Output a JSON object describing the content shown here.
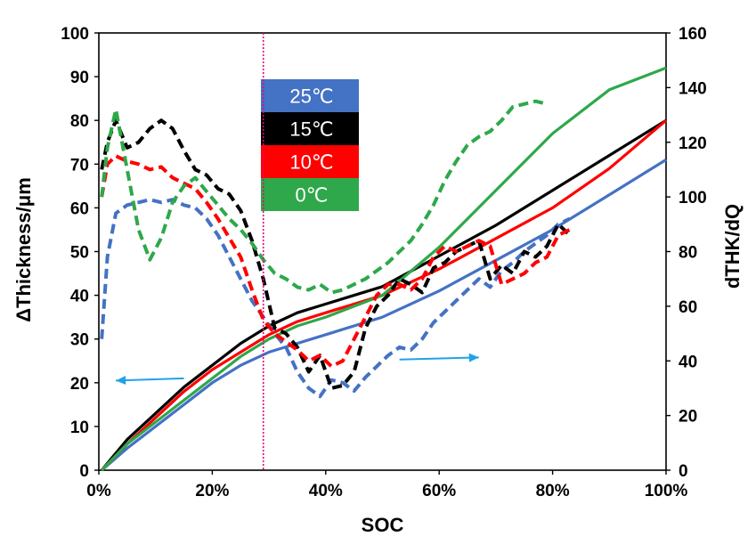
{
  "chart_data": {
    "type": "line",
    "xlabel": "SOC",
    "ylabel": "ΔThickness/μm",
    "y2label": "dTHK/dQ",
    "xlim": [
      0,
      100
    ],
    "ylim": [
      0,
      100
    ],
    "y2lim": [
      0,
      160
    ],
    "x_ticks": [
      0,
      20,
      40,
      60,
      80,
      100
    ],
    "x_tick_labels": [
      "0%",
      "20%",
      "40%",
      "60%",
      "80%",
      "100%"
    ],
    "y_ticks": [
      0,
      10,
      20,
      30,
      40,
      50,
      60,
      70,
      80,
      90,
      100
    ],
    "y_tick_labels": [
      "0",
      "10",
      "20",
      "30",
      "40",
      "50",
      "60",
      "70",
      "80",
      "90",
      "100"
    ],
    "y2_ticks": [
      0,
      20,
      40,
      60,
      80,
      100,
      120,
      140,
      160
    ],
    "y2_tick_labels": [
      "0",
      "20",
      "40",
      "60",
      "80",
      "100",
      "120",
      "140",
      "160"
    ],
    "marker_line_x": 29,
    "arrows": [
      {
        "from": [
          15,
          21
        ],
        "to": [
          3,
          20.5
        ],
        "direction": "left-axis"
      },
      {
        "from": [
          53,
          25.3
        ],
        "to": [
          67,
          25.8
        ],
        "direction": "right-axis"
      }
    ],
    "legend": [
      {
        "label": "25℃",
        "color": "#4472C4",
        "text_color": "#ffffff"
      },
      {
        "label": "15℃",
        "color": "#000000",
        "text_color": "#ffffff"
      },
      {
        "label": "10℃",
        "color": "#FF0000",
        "text_color": "#ffffff"
      },
      {
        "label": "0℃",
        "color": "#2EA84A",
        "text_color": "#ffffff"
      }
    ],
    "series": [
      {
        "name": "25℃ ΔThickness",
        "axis": "left",
        "style": "solid",
        "color": "#4472C4",
        "x": [
          0.5,
          5,
          10,
          15,
          20,
          25,
          30,
          35,
          40,
          50,
          60,
          70,
          80,
          90,
          100
        ],
        "y": [
          0,
          5,
          10,
          15,
          20,
          24,
          27,
          29,
          31,
          35,
          41,
          48,
          55,
          63,
          71
        ]
      },
      {
        "name": "15℃ ΔThickness",
        "axis": "left",
        "style": "solid",
        "color": "#000000",
        "x": [
          0.5,
          5,
          10,
          15,
          20,
          25,
          30,
          35,
          40,
          50,
          60,
          70,
          80,
          90,
          100
        ],
        "y": [
          0,
          7,
          13,
          19,
          24,
          29,
          33,
          36,
          38,
          42,
          49,
          56,
          64,
          72,
          80
        ]
      },
      {
        "name": "10℃ ΔThickness",
        "axis": "left",
        "style": "solid",
        "color": "#FF0000",
        "x": [
          0.5,
          5,
          10,
          15,
          20,
          25,
          30,
          35,
          40,
          50,
          60,
          70,
          80,
          90,
          100
        ],
        "y": [
          0,
          6,
          12,
          18,
          23,
          27,
          31,
          34,
          36,
          40,
          46,
          53,
          60,
          69,
          80
        ]
      },
      {
        "name": "0℃ ΔThickness",
        "axis": "left",
        "style": "solid",
        "color": "#2EA84A",
        "x": [
          0.5,
          5,
          10,
          15,
          20,
          25,
          30,
          35,
          40,
          50,
          60,
          70,
          80,
          90,
          100
        ],
        "y": [
          0,
          6,
          11,
          16,
          21,
          26,
          30,
          33,
          35,
          40,
          51,
          64,
          77,
          87,
          92
        ]
      },
      {
        "name": "25℃ dTHK/dQ",
        "axis": "right",
        "style": "dashed",
        "color": "#4472C4",
        "x": [
          0.5,
          1.5,
          3,
          5,
          7,
          9,
          11,
          13,
          15,
          17,
          19,
          21,
          23,
          25,
          27,
          29,
          31,
          33,
          35,
          37,
          39,
          41,
          43,
          45,
          47,
          49,
          51,
          53,
          55,
          57,
          59,
          61,
          63,
          65,
          67,
          69,
          71,
          73,
          75,
          77,
          79,
          81,
          83
        ],
        "y": [
          48,
          78,
          94,
          97,
          98,
          99,
          98,
          99,
          97,
          96,
          92,
          86,
          78,
          70,
          62,
          56,
          50,
          45,
          36,
          30,
          27,
          33,
          32,
          29,
          34,
          38,
          42,
          45,
          44,
          48,
          54,
          58,
          62,
          66,
          70,
          67,
          73,
          76,
          80,
          83,
          86,
          90,
          92
        ]
      },
      {
        "name": "15℃ dTHK/dQ",
        "axis": "right",
        "style": "dashed",
        "color": "#000000",
        "x": [
          0.5,
          1.5,
          3,
          5,
          7,
          9,
          11,
          13,
          15,
          17,
          19,
          21,
          23,
          25,
          27,
          29,
          31,
          33,
          35,
          37,
          39,
          41,
          43,
          45,
          47,
          49,
          51,
          53,
          55,
          57,
          59,
          61,
          63,
          65,
          67,
          69,
          71,
          73,
          75,
          77,
          79,
          81,
          83
        ],
        "y": [
          110,
          120,
          128,
          118,
          120,
          125,
          128,
          125,
          117,
          110,
          108,
          103,
          101,
          95,
          84,
          70,
          52,
          50,
          45,
          36,
          42,
          30,
          31,
          36,
          52,
          60,
          64,
          70,
          68,
          65,
          74,
          76,
          80,
          82,
          84,
          70,
          75,
          72,
          80,
          78,
          82,
          90,
          86
        ]
      },
      {
        "name": "10℃ dTHK/dQ",
        "axis": "right",
        "style": "dashed",
        "color": "#FF0000",
        "x": [
          0.5,
          1.5,
          3,
          5,
          7,
          9,
          11,
          13,
          15,
          17,
          19,
          21,
          23,
          25,
          27,
          29,
          31,
          33,
          35,
          37,
          39,
          41,
          43,
          45,
          47,
          49,
          51,
          53,
          55,
          57,
          59,
          61,
          63,
          65,
          67,
          69,
          71,
          73,
          75,
          77,
          79,
          81,
          83
        ],
        "y": [
          100,
          112,
          115,
          113,
          112,
          110,
          111,
          107,
          105,
          103,
          98,
          92,
          85,
          78,
          66,
          55,
          50,
          47,
          44,
          40,
          42,
          38,
          40,
          48,
          56,
          64,
          68,
          68,
          66,
          70,
          78,
          82,
          80,
          82,
          84,
          82,
          68,
          70,
          72,
          76,
          78,
          86,
          88
        ]
      },
      {
        "name": "0℃ dTHK/dQ",
        "axis": "right",
        "style": "dashed",
        "color": "#2EA84A",
        "x": [
          0.5,
          1.5,
          3,
          5,
          7,
          9,
          11,
          13,
          15,
          17,
          19,
          21,
          23,
          25,
          27,
          29,
          31,
          33,
          35,
          37,
          39,
          41,
          43,
          45,
          47,
          49,
          51,
          53,
          55,
          57,
          59,
          61,
          63,
          65,
          67,
          69,
          71,
          73,
          75,
          77,
          79
        ],
        "y": [
          100,
          118,
          132,
          110,
          88,
          77,
          85,
          98,
          104,
          107,
          102,
          97,
          92,
          88,
          83,
          77,
          72,
          70,
          67,
          66,
          68,
          65,
          66,
          68,
          70,
          73,
          76,
          80,
          84,
          90,
          97,
          106,
          113,
          119,
          122,
          124,
          128,
          133,
          134,
          135,
          134
        ]
      }
    ]
  }
}
